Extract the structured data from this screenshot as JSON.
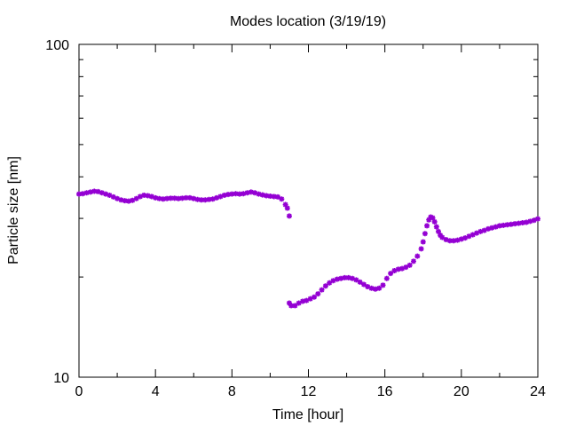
{
  "chart_data": {
    "type": "scatter",
    "title": "Modes location (3/19/19)",
    "xlabel": "Time [hour]",
    "ylabel": "Particle size [nm]",
    "xlim": [
      0,
      24
    ],
    "ylim": [
      10,
      100
    ],
    "yscale": "log",
    "grid": false,
    "x_ticks": [
      0,
      4,
      8,
      12,
      16,
      20,
      24
    ],
    "x_tick_labels": [
      "0",
      "4",
      "8",
      "12",
      "16",
      "20",
      "24"
    ],
    "y_ticks": [
      10,
      100
    ],
    "y_tick_labels": [
      "10",
      "100"
    ],
    "marker_color": "#9400d3",
    "series": [
      {
        "points": [
          [
            0.0,
            35.5
          ],
          [
            0.2,
            35.6
          ],
          [
            0.4,
            35.8
          ],
          [
            0.6,
            36.0
          ],
          [
            0.8,
            36.2
          ],
          [
            1.0,
            36.1
          ],
          [
            1.2,
            35.8
          ],
          [
            1.4,
            35.5
          ],
          [
            1.6,
            35.2
          ],
          [
            1.8,
            34.8
          ],
          [
            2.0,
            34.4
          ],
          [
            2.2,
            34.1
          ],
          [
            2.4,
            33.9
          ],
          [
            2.6,
            33.8
          ],
          [
            2.8,
            34.0
          ],
          [
            3.0,
            34.4
          ],
          [
            3.2,
            34.9
          ],
          [
            3.4,
            35.2
          ],
          [
            3.6,
            35.1
          ],
          [
            3.8,
            34.9
          ],
          [
            4.0,
            34.6
          ],
          [
            4.2,
            34.4
          ],
          [
            4.4,
            34.3
          ],
          [
            4.6,
            34.4
          ],
          [
            4.8,
            34.5
          ],
          [
            5.0,
            34.5
          ],
          [
            5.2,
            34.4
          ],
          [
            5.4,
            34.5
          ],
          [
            5.6,
            34.6
          ],
          [
            5.8,
            34.6
          ],
          [
            6.0,
            34.4
          ],
          [
            6.2,
            34.2
          ],
          [
            6.4,
            34.1
          ],
          [
            6.6,
            34.1
          ],
          [
            6.8,
            34.2
          ],
          [
            7.0,
            34.3
          ],
          [
            7.2,
            34.6
          ],
          [
            7.4,
            34.9
          ],
          [
            7.6,
            35.2
          ],
          [
            7.8,
            35.4
          ],
          [
            8.0,
            35.5
          ],
          [
            8.2,
            35.6
          ],
          [
            8.4,
            35.5
          ],
          [
            8.6,
            35.6
          ],
          [
            8.8,
            35.8
          ],
          [
            9.0,
            36.0
          ],
          [
            9.2,
            35.8
          ],
          [
            9.4,
            35.5
          ],
          [
            9.6,
            35.3
          ],
          [
            9.8,
            35.1
          ],
          [
            10.0,
            35.0
          ],
          [
            10.2,
            34.9
          ],
          [
            10.4,
            34.8
          ],
          [
            10.6,
            34.3
          ],
          [
            10.8,
            33.0
          ],
          [
            10.9,
            32.2
          ],
          [
            11.0,
            30.5
          ]
        ]
      },
      {
        "points": [
          [
            11.0,
            16.7
          ],
          [
            11.1,
            16.4
          ],
          [
            11.3,
            16.4
          ],
          [
            11.5,
            16.7
          ],
          [
            11.7,
            16.9
          ],
          [
            11.9,
            17.0
          ],
          [
            12.1,
            17.2
          ],
          [
            12.3,
            17.4
          ],
          [
            12.5,
            17.8
          ],
          [
            12.7,
            18.3
          ],
          [
            12.9,
            18.8
          ],
          [
            13.1,
            19.2
          ],
          [
            13.3,
            19.5
          ],
          [
            13.5,
            19.7
          ],
          [
            13.7,
            19.8
          ],
          [
            13.9,
            19.9
          ],
          [
            14.1,
            19.9
          ],
          [
            14.3,
            19.8
          ],
          [
            14.5,
            19.6
          ],
          [
            14.7,
            19.3
          ],
          [
            14.9,
            19.0
          ],
          [
            15.1,
            18.7
          ],
          [
            15.3,
            18.5
          ],
          [
            15.5,
            18.4
          ],
          [
            15.7,
            18.5
          ],
          [
            15.9,
            18.9
          ],
          [
            16.1,
            19.8
          ],
          [
            16.3,
            20.5
          ],
          [
            16.5,
            20.9
          ],
          [
            16.7,
            21.1
          ],
          [
            16.9,
            21.2
          ],
          [
            17.1,
            21.4
          ],
          [
            17.3,
            21.7
          ],
          [
            17.5,
            22.3
          ],
          [
            17.7,
            23.1
          ],
          [
            17.9,
            24.3
          ],
          [
            18.0,
            25.5
          ],
          [
            18.1,
            27.0
          ],
          [
            18.2,
            28.5
          ],
          [
            18.3,
            29.7
          ],
          [
            18.4,
            30.3
          ],
          [
            18.5,
            30.1
          ],
          [
            18.6,
            29.3
          ],
          [
            18.7,
            28.3
          ],
          [
            18.8,
            27.4
          ],
          [
            18.9,
            26.7
          ],
          [
            19.0,
            26.3
          ],
          [
            19.2,
            25.9
          ],
          [
            19.4,
            25.7
          ],
          [
            19.6,
            25.7
          ],
          [
            19.8,
            25.8
          ],
          [
            20.0,
            26.0
          ],
          [
            20.2,
            26.2
          ],
          [
            20.4,
            26.5
          ],
          [
            20.6,
            26.8
          ],
          [
            20.8,
            27.1
          ],
          [
            21.0,
            27.4
          ],
          [
            21.2,
            27.6
          ],
          [
            21.4,
            27.9
          ],
          [
            21.6,
            28.1
          ],
          [
            21.8,
            28.3
          ],
          [
            22.0,
            28.5
          ],
          [
            22.2,
            28.6
          ],
          [
            22.4,
            28.7
          ],
          [
            22.6,
            28.8
          ],
          [
            22.8,
            28.9
          ],
          [
            23.0,
            29.0
          ],
          [
            23.2,
            29.1
          ],
          [
            23.4,
            29.2
          ],
          [
            23.6,
            29.4
          ],
          [
            23.8,
            29.6
          ],
          [
            24.0,
            29.9
          ]
        ]
      }
    ]
  }
}
